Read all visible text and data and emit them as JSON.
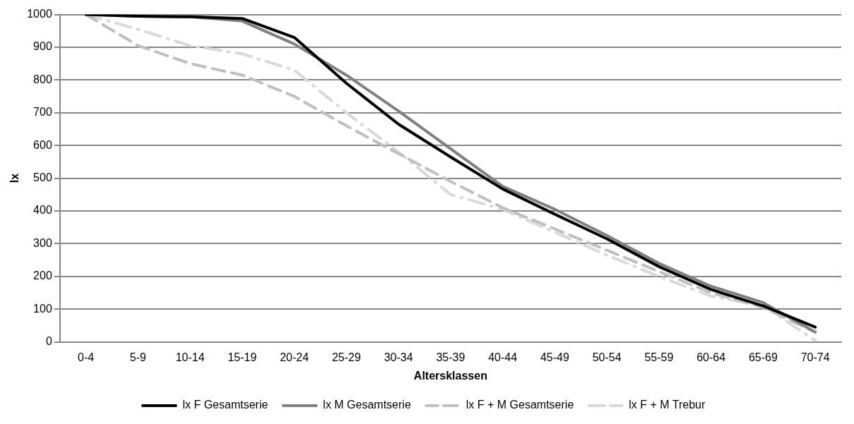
{
  "chart_data": {
    "type": "line",
    "xlabel": "Altersklassen",
    "ylabel": "lx",
    "categories": [
      "0-4",
      "5-9",
      "10-14",
      "15-19",
      "20-24",
      "25-29",
      "30-34",
      "35-39",
      "40-44",
      "45-49",
      "50-54",
      "55-59",
      "60-64",
      "65-69",
      "70-74"
    ],
    "series": [
      {
        "name": "lx F Gesamtserie",
        "color": "#000000",
        "line_style": "solid",
        "values": [
          1000,
          995,
          993,
          988,
          930,
          790,
          665,
          565,
          467,
          390,
          315,
          230,
          160,
          110,
          45
        ]
      },
      {
        "name": "lx M Gesamtserie",
        "color": "#808080",
        "line_style": "solid",
        "values": [
          1000,
          995,
          993,
          980,
          910,
          815,
          705,
          590,
          475,
          405,
          325,
          240,
          170,
          120,
          30
        ]
      },
      {
        "name": "lx F + M Gesamtserie",
        "color": "#bfbfbf",
        "line_style": "dashed",
        "values": [
          1000,
          905,
          850,
          815,
          750,
          660,
          575,
          490,
          410,
          345,
          280,
          215,
          150,
          105,
          30
        ]
      },
      {
        "name": "lx F + M Trebur",
        "color": "#d9d9d9",
        "line_style": "dashdot",
        "values": [
          1000,
          955,
          905,
          880,
          830,
          700,
          580,
          450,
          405,
          335,
          265,
          200,
          140,
          110,
          5
        ]
      }
    ],
    "ylim": [
      0,
      1000
    ],
    "yticks": [
      0,
      100,
      200,
      300,
      400,
      500,
      600,
      700,
      800,
      900,
      1000
    ],
    "grid": "y",
    "legend": "bottom",
    "marker": "none"
  }
}
